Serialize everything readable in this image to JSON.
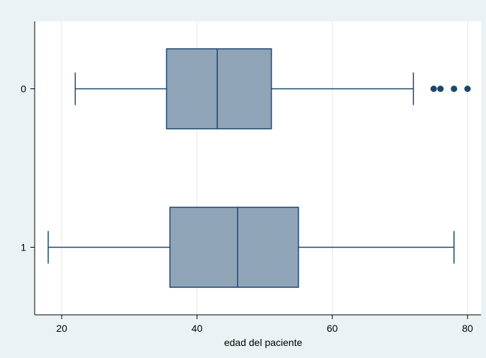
{
  "chart_data": {
    "type": "box",
    "orientation": "horizontal",
    "title": "",
    "xlabel": "edad del paciente",
    "ylabel": "",
    "xlim": [
      16,
      82
    ],
    "xticks": [
      20,
      40,
      60,
      80
    ],
    "grid": true,
    "categories": [
      "0",
      "1"
    ],
    "boxes": [
      {
        "category": "0",
        "whisker_low": 22,
        "q1": 35.5,
        "median": 43,
        "q3": 51,
        "whisker_high": 72,
        "outliers": [
          75,
          76,
          78,
          80
        ]
      },
      {
        "category": "1",
        "whisker_low": 18,
        "q1": 36,
        "median": 46,
        "q3": 55,
        "whisker_high": 78,
        "outliers": []
      }
    ],
    "colors": {
      "box_fill": "#90a4b8",
      "box_stroke": "#1a476f",
      "whisker": "#1a476f",
      "outlier": "#1a476f",
      "grid": "#e6e6e6",
      "outer_background": "#eaf2f3",
      "plot_background": "#ffffff"
    }
  }
}
